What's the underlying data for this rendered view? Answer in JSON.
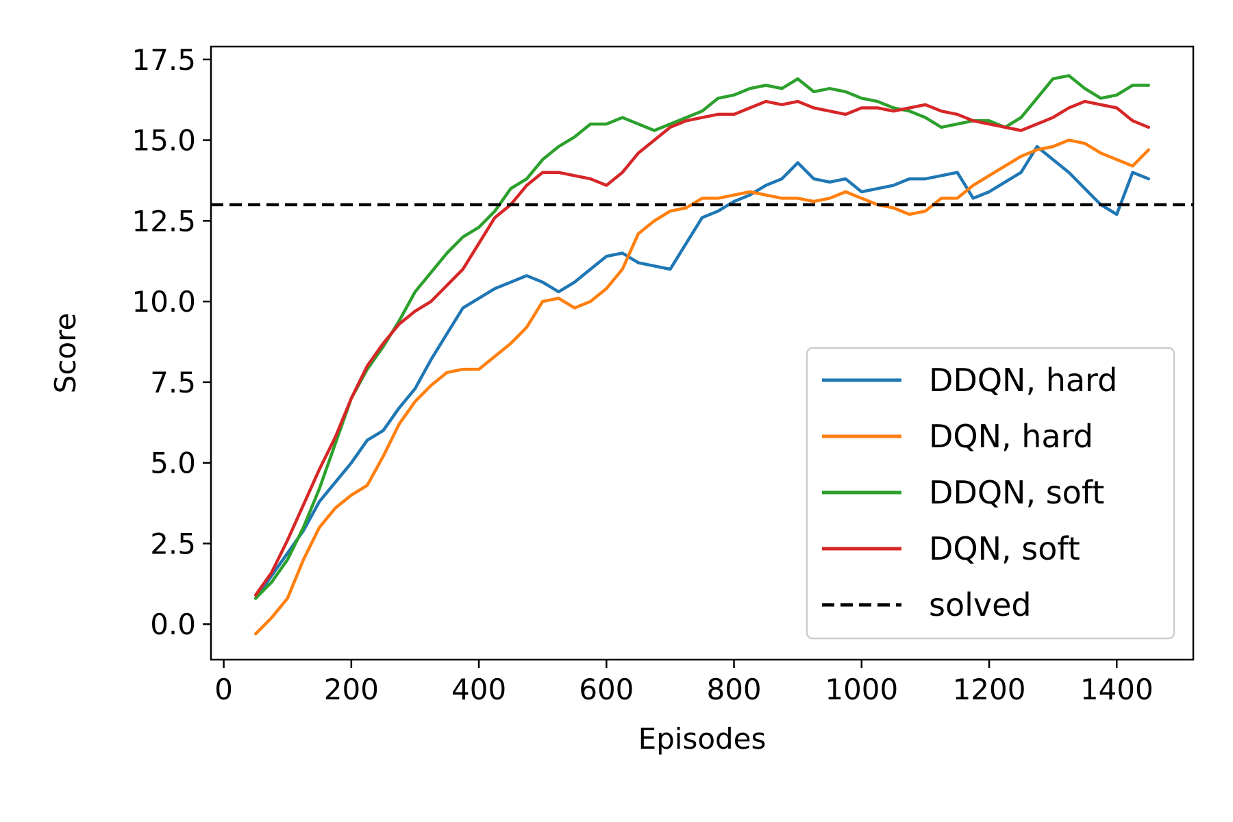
{
  "chart_data": {
    "type": "line",
    "xlabel": "Episodes",
    "ylabel": "Score",
    "xlim": [
      -20,
      1520
    ],
    "ylim": [
      -1.1,
      17.9
    ],
    "xticks": [
      0,
      200,
      400,
      600,
      800,
      1000,
      1200,
      1400
    ],
    "xtick_labels": [
      "0",
      "200",
      "400",
      "600",
      "800",
      "1000",
      "1200",
      "1400"
    ],
    "yticks": [
      0.0,
      2.5,
      5.0,
      7.5,
      10.0,
      12.5,
      15.0,
      17.5
    ],
    "ytick_labels": [
      "0.0",
      "2.5",
      "5.0",
      "7.5",
      "10.0",
      "12.5",
      "15.0",
      "17.5"
    ],
    "grid": false,
    "legend_position": "lower-right",
    "series": [
      {
        "name": "DDQN, hard",
        "color": "#1f77b4",
        "style": "solid",
        "x": [
          50,
          75,
          100,
          125,
          150,
          175,
          200,
          225,
          250,
          275,
          300,
          325,
          350,
          375,
          400,
          425,
          450,
          475,
          500,
          525,
          550,
          575,
          600,
          625,
          650,
          675,
          700,
          725,
          750,
          775,
          800,
          825,
          850,
          875,
          900,
          925,
          950,
          975,
          1000,
          1025,
          1050,
          1075,
          1100,
          1125,
          1150,
          1175,
          1200,
          1225,
          1250,
          1275,
          1300,
          1325,
          1350,
          1375,
          1400,
          1425,
          1450
        ],
        "y": [
          0.8,
          1.5,
          2.2,
          2.9,
          3.8,
          4.4,
          5.0,
          5.7,
          6.0,
          6.7,
          7.3,
          8.2,
          9.0,
          9.8,
          10.1,
          10.4,
          10.6,
          10.8,
          10.6,
          10.3,
          10.6,
          11.0,
          11.4,
          11.5,
          11.2,
          11.1,
          11.0,
          11.8,
          12.6,
          12.8,
          13.1,
          13.3,
          13.6,
          13.8,
          14.3,
          13.8,
          13.7,
          13.8,
          13.4,
          13.5,
          13.6,
          13.8,
          13.8,
          13.9,
          14.0,
          13.2,
          13.4,
          13.7,
          14.0,
          14.8,
          14.4,
          14.0,
          13.5,
          13.0,
          12.7,
          14.0,
          13.8
        ]
      },
      {
        "name": "DQN, hard",
        "color": "#ff7f0e",
        "style": "solid",
        "x": [
          50,
          75,
          100,
          125,
          150,
          175,
          200,
          225,
          250,
          275,
          300,
          325,
          350,
          375,
          400,
          425,
          450,
          475,
          500,
          525,
          550,
          575,
          600,
          625,
          650,
          675,
          700,
          725,
          750,
          775,
          800,
          825,
          850,
          875,
          900,
          925,
          950,
          975,
          1000,
          1025,
          1050,
          1075,
          1100,
          1125,
          1150,
          1175,
          1200,
          1225,
          1250,
          1275,
          1300,
          1325,
          1350,
          1375,
          1400,
          1425,
          1450
        ],
        "y": [
          -0.3,
          0.2,
          0.8,
          2.0,
          3.0,
          3.6,
          4.0,
          4.3,
          5.2,
          6.2,
          6.9,
          7.4,
          7.8,
          7.9,
          7.9,
          8.3,
          8.7,
          9.2,
          10.0,
          10.1,
          9.8,
          10.0,
          10.4,
          11.0,
          12.1,
          12.5,
          12.8,
          12.9,
          13.2,
          13.2,
          13.3,
          13.4,
          13.3,
          13.2,
          13.2,
          13.1,
          13.2,
          13.4,
          13.2,
          13.0,
          12.9,
          12.7,
          12.8,
          13.2,
          13.2,
          13.6,
          13.9,
          14.2,
          14.5,
          14.7,
          14.8,
          15.0,
          14.9,
          14.6,
          14.4,
          14.2,
          14.7
        ]
      },
      {
        "name": "DDQN, soft",
        "color": "#2ca02c",
        "style": "solid",
        "x": [
          50,
          75,
          100,
          125,
          150,
          175,
          200,
          225,
          250,
          275,
          300,
          325,
          350,
          375,
          400,
          425,
          450,
          475,
          500,
          525,
          550,
          575,
          600,
          625,
          650,
          675,
          700,
          725,
          750,
          775,
          800,
          825,
          850,
          875,
          900,
          925,
          950,
          975,
          1000,
          1025,
          1050,
          1075,
          1100,
          1125,
          1150,
          1175,
          1200,
          1225,
          1250,
          1275,
          1300,
          1325,
          1350,
          1375,
          1400,
          1425,
          1450
        ],
        "y": [
          0.8,
          1.3,
          2.0,
          3.0,
          4.2,
          5.6,
          7.0,
          7.9,
          8.6,
          9.4,
          10.3,
          10.9,
          11.5,
          12.0,
          12.3,
          12.8,
          13.5,
          13.8,
          14.4,
          14.8,
          15.1,
          15.5,
          15.5,
          15.7,
          15.5,
          15.3,
          15.5,
          15.7,
          15.9,
          16.3,
          16.4,
          16.6,
          16.7,
          16.6,
          16.9,
          16.5,
          16.6,
          16.5,
          16.3,
          16.2,
          16.0,
          15.9,
          15.7,
          15.4,
          15.5,
          15.6,
          15.6,
          15.4,
          15.7,
          16.3,
          16.9,
          17.0,
          16.6,
          16.3,
          16.4,
          16.7,
          16.7
        ]
      },
      {
        "name": "DQN, soft",
        "color": "#d62728",
        "style": "solid",
        "x": [
          50,
          75,
          100,
          125,
          150,
          175,
          200,
          225,
          250,
          275,
          300,
          325,
          350,
          375,
          400,
          425,
          450,
          475,
          500,
          525,
          550,
          575,
          600,
          625,
          650,
          675,
          700,
          725,
          750,
          775,
          800,
          825,
          850,
          875,
          900,
          925,
          950,
          975,
          1000,
          1025,
          1050,
          1075,
          1100,
          1125,
          1150,
          1175,
          1200,
          1225,
          1250,
          1275,
          1300,
          1325,
          1350,
          1375,
          1400,
          1425,
          1450
        ],
        "y": [
          0.9,
          1.6,
          2.6,
          3.7,
          4.8,
          5.8,
          7.0,
          8.0,
          8.7,
          9.3,
          9.7,
          10.0,
          10.5,
          11.0,
          11.8,
          12.6,
          13.0,
          13.6,
          14.0,
          14.0,
          13.9,
          13.8,
          13.6,
          14.0,
          14.6,
          15.0,
          15.4,
          15.6,
          15.7,
          15.8,
          15.8,
          16.0,
          16.2,
          16.1,
          16.2,
          16.0,
          15.9,
          15.8,
          16.0,
          16.0,
          15.9,
          16.0,
          16.1,
          15.9,
          15.8,
          15.6,
          15.5,
          15.4,
          15.3,
          15.5,
          15.7,
          16.0,
          16.2,
          16.1,
          16.0,
          15.6,
          15.4
        ]
      }
    ],
    "reference_line": {
      "name": "solved",
      "y": 13.0,
      "color": "#000000",
      "style": "dashed"
    }
  }
}
